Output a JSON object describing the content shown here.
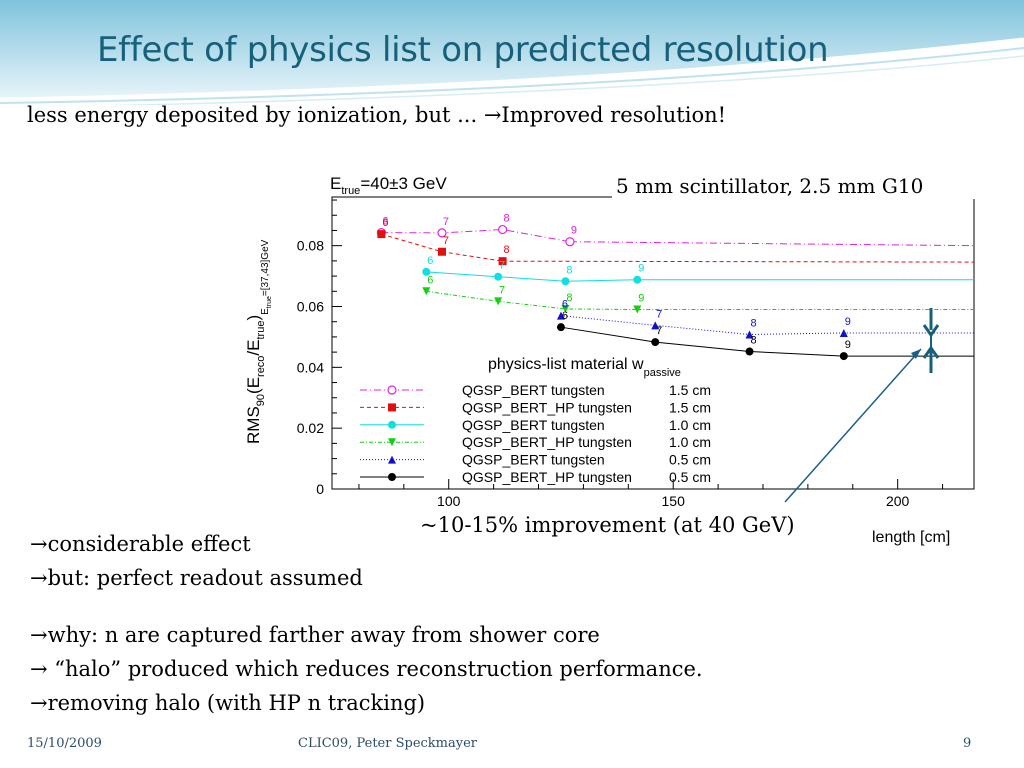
{
  "slide": {
    "title": "Effect of physics list on predicted resolution",
    "subtitle": "less energy deposited by ionization, but ... →Improved resolution!",
    "bullets_group1": [
      "→considerable effect",
      "→but: perfect readout assumed"
    ],
    "bullets_group2": [
      "→why: n are captured farther away from shower core",
      "→ “halo” produced which reduces reconstruction performance.",
      "→removing halo (with HP n tracking)"
    ],
    "footer": {
      "date": "15/10/2009",
      "center": "CLIC09, Peter Speckmayer",
      "page": "9"
    }
  },
  "chart_data": {
    "type": "line",
    "annotation_top": "5 mm scintillator, 2.5 mm G10",
    "annotation_bottom": "~10-15% improvement (at 40 GeV)",
    "ylabel": "RMS90(Ereco/Etrue)Etrue=[37,43]GeV",
    "xlabel": "length  [cm]",
    "xlim": [
      74,
      217
    ],
    "ylim": [
      0,
      0.096
    ],
    "xticks": [
      100,
      150,
      200
    ],
    "yticks": [
      0,
      0.02,
      0.04,
      0.06,
      0.08
    ],
    "legend_title": "physics-list material  w",
    "legend_title_sub": "passive",
    "series": [
      {
        "name": "QGSP_BERT tungsten   1.5 cm",
        "color": "#e020e0",
        "marker": "open-circle",
        "dash": "7,3,1,3",
        "x": [
          85,
          98.5,
          112,
          127
        ],
        "y": [
          0.0843,
          0.0842,
          0.0853,
          0.0813
        ],
        "labels": [
          "6",
          "7",
          "8",
          "9"
        ],
        "tail": {
          "x": [
            127,
            217
          ],
          "y": [
            0.0813,
            0.08
          ]
        }
      },
      {
        "name": "QGSP_BERT_HP tungsten   1.5 cm",
        "color": "#e01010",
        "marker": "square",
        "dash": "4,3",
        "x": [
          85,
          98.5,
          112
        ],
        "y": [
          0.0838,
          0.078,
          0.0749
        ],
        "labels": [
          "6",
          "7",
          "8"
        ],
        "tail": {
          "x": [
            112,
            217
          ],
          "y": [
            0.0749,
            0.0746
          ]
        }
      },
      {
        "name": "QGSP_BERT tungsten   1.0 cm",
        "color": "#10e0e0",
        "marker": "circle",
        "dash": "",
        "x": [
          95,
          111,
          126,
          142
        ],
        "y": [
          0.0714,
          0.0698,
          0.0683,
          0.0688
        ],
        "labels": [
          "6",
          "7",
          "8",
          "9"
        ],
        "tail": {
          "x": [
            142,
            217
          ],
          "y": [
            0.0688,
            0.0688
          ]
        }
      },
      {
        "name": "QGSP_BERT_HP tungsten   1.0 cm",
        "color": "#10d010",
        "marker": "triangle-down",
        "dash": "4,2,1,2",
        "x": [
          95,
          111,
          126,
          142
        ],
        "y": [
          0.065,
          0.0617,
          0.0592,
          0.059
        ],
        "labels": [
          "6",
          "7",
          "8",
          "9"
        ],
        "tail": {
          "x": [
            142,
            217
          ],
          "y": [
            0.059,
            0.059
          ]
        }
      },
      {
        "name": "QGSP_BERT tungsten   0.5 cm",
        "color": "#1010d0",
        "marker": "triangle-up",
        "dash": "1,2",
        "x": [
          125,
          146,
          167,
          188
        ],
        "y": [
          0.057,
          0.0538,
          0.0508,
          0.0513
        ],
        "labels": [
          "6",
          "7",
          "8",
          "9"
        ],
        "tail": {
          "x": [
            188,
            217
          ],
          "y": [
            0.0513,
            0.0513
          ]
        }
      },
      {
        "name": "QGSP_BERT_HP tungsten   0.5 cm",
        "color": "#000000",
        "marker": "circle",
        "dash": "",
        "x": [
          125,
          146,
          167,
          188
        ],
        "y": [
          0.0532,
          0.0483,
          0.0452,
          0.0437
        ],
        "labels": [
          "6",
          "7",
          "8",
          "9"
        ],
        "tail": {
          "x": [
            188,
            217
          ],
          "y": [
            0.0437,
            0.0437
          ]
        }
      }
    ]
  }
}
